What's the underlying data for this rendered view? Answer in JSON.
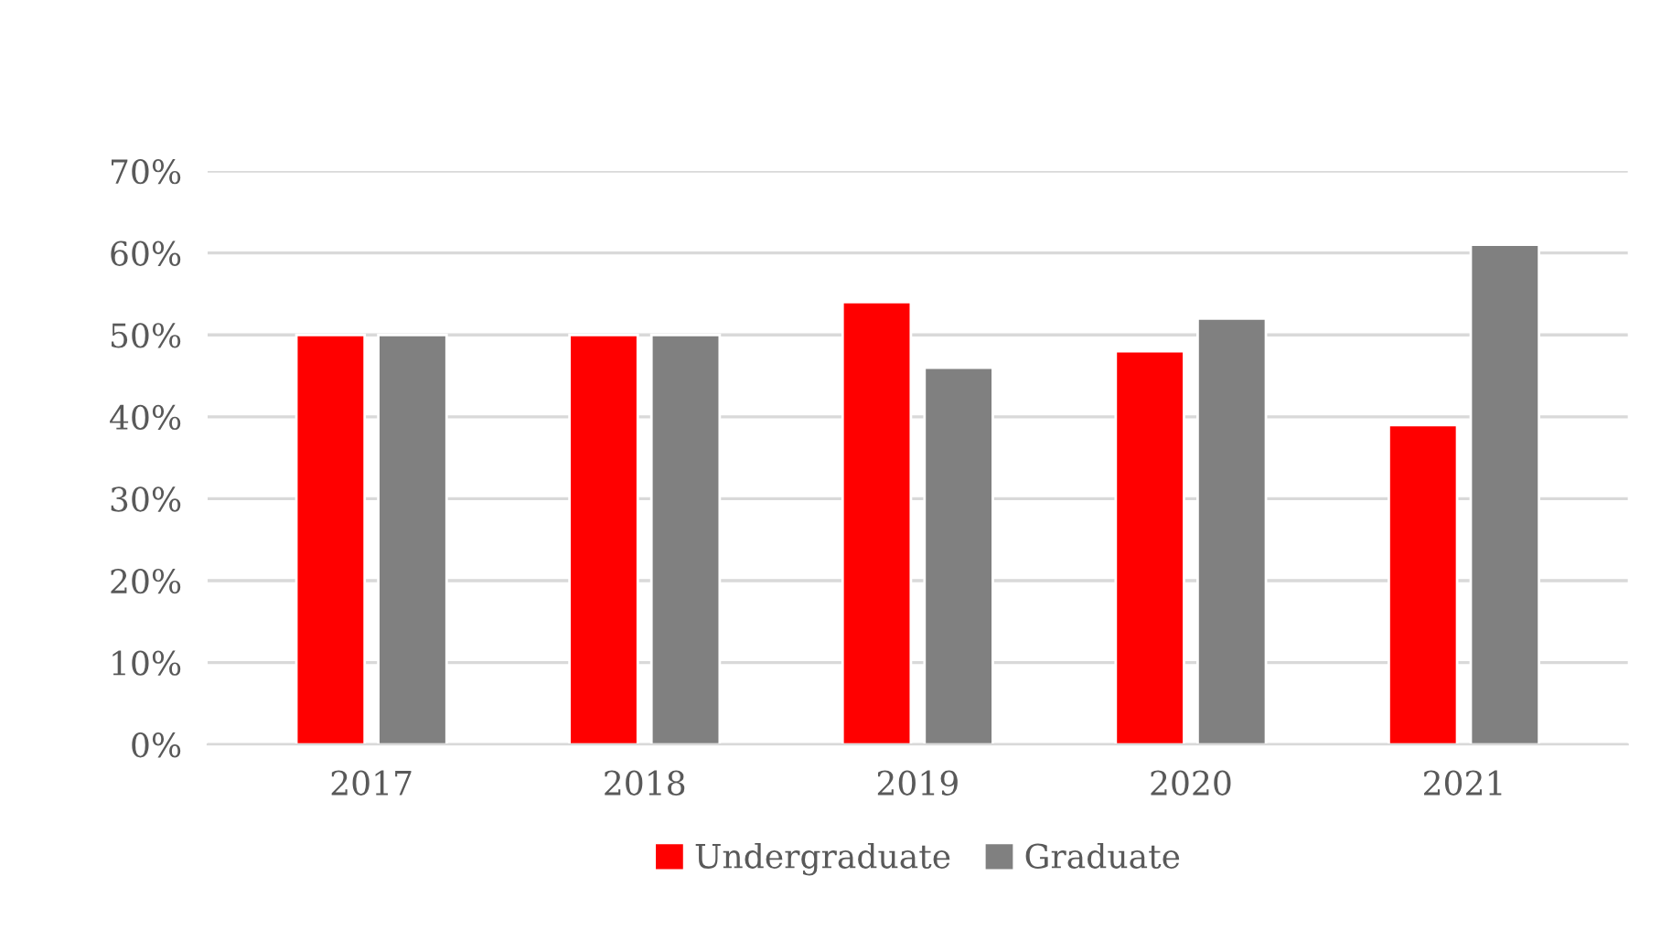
{
  "chart_data": {
    "type": "bar",
    "categories": [
      "2017",
      "2018",
      "2019",
      "2020",
      "2021"
    ],
    "series": [
      {
        "name": "Undergraduate",
        "color": "#ff0000",
        "values": [
          50,
          50,
          54,
          48,
          39
        ]
      },
      {
        "name": "Graduate",
        "color": "#808080",
        "values": [
          50,
          50,
          46,
          52,
          61
        ]
      }
    ],
    "ylim": [
      0,
      70
    ],
    "yticks": [
      {
        "value": 0,
        "label": "0%"
      },
      {
        "value": 10,
        "label": "10%"
      },
      {
        "value": 20,
        "label": "20%"
      },
      {
        "value": 30,
        "label": "30%"
      },
      {
        "value": 40,
        "label": "40%"
      },
      {
        "value": 50,
        "label": "50%"
      },
      {
        "value": 60,
        "label": "60%"
      },
      {
        "value": 70,
        "label": "70%"
      }
    ],
    "grid": "y",
    "legend": "bottom"
  }
}
